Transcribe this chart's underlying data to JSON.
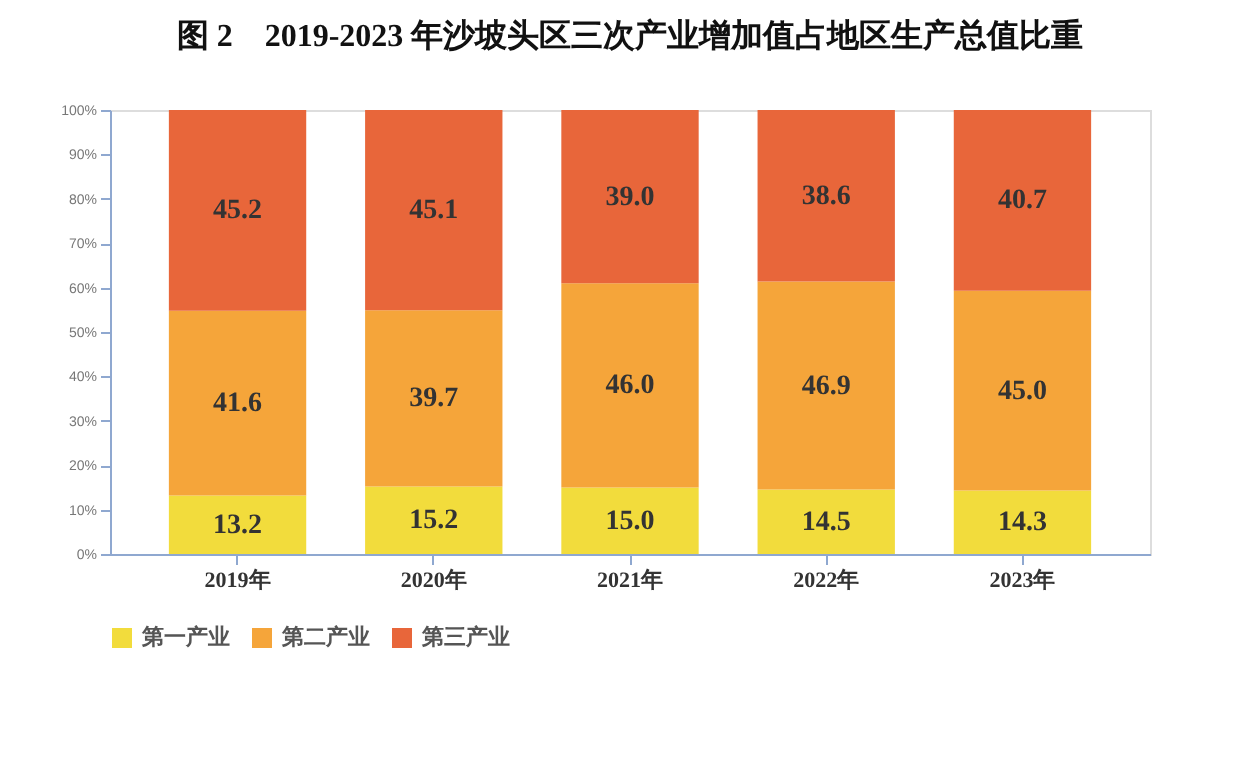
{
  "chart_data": {
    "type": "bar",
    "title": "图 2　2019-2023 年沙坡头区三次产业增加值占地区生产总值比重",
    "categories": [
      "2019年",
      "2020年",
      "2021年",
      "2022年",
      "2023年"
    ],
    "stacked": true,
    "legend": "bottom",
    "grid": false,
    "series": [
      {
        "name": "第一产业",
        "color": "#f2dc3c",
        "values": [
          13.2,
          15.2,
          15.0,
          14.5,
          14.3
        ],
        "value_labels": [
          "13.2",
          "15.2",
          "15.0",
          "14.5",
          "14.3"
        ]
      },
      {
        "name": "第二产业",
        "color": "#f5a53a",
        "values": [
          41.6,
          39.7,
          46.0,
          46.9,
          45.0
        ],
        "value_labels": [
          "41.6",
          "39.7",
          "46.0",
          "46.9",
          "45.0"
        ]
      },
      {
        "name": "第三产业",
        "color": "#e8663a",
        "values": [
          45.2,
          45.1,
          39.0,
          38.6,
          40.7
        ],
        "value_labels": [
          "45.2",
          "45.1",
          "39.0",
          "38.6",
          "40.7"
        ]
      }
    ],
    "ylim": [
      0,
      100
    ],
    "yticks": [
      {
        "value": 0,
        "label": "0%"
      },
      {
        "value": 10,
        "label": "10%"
      },
      {
        "value": 20,
        "label": "20%"
      },
      {
        "value": 30,
        "label": "30%"
      },
      {
        "value": 40,
        "label": "40%"
      },
      {
        "value": 50,
        "label": "50%"
      },
      {
        "value": 60,
        "label": "60%"
      },
      {
        "value": 70,
        "label": "70%"
      },
      {
        "value": 80,
        "label": "80%"
      },
      {
        "value": 90,
        "label": "90%"
      },
      {
        "value": 100,
        "label": "100%"
      }
    ]
  }
}
